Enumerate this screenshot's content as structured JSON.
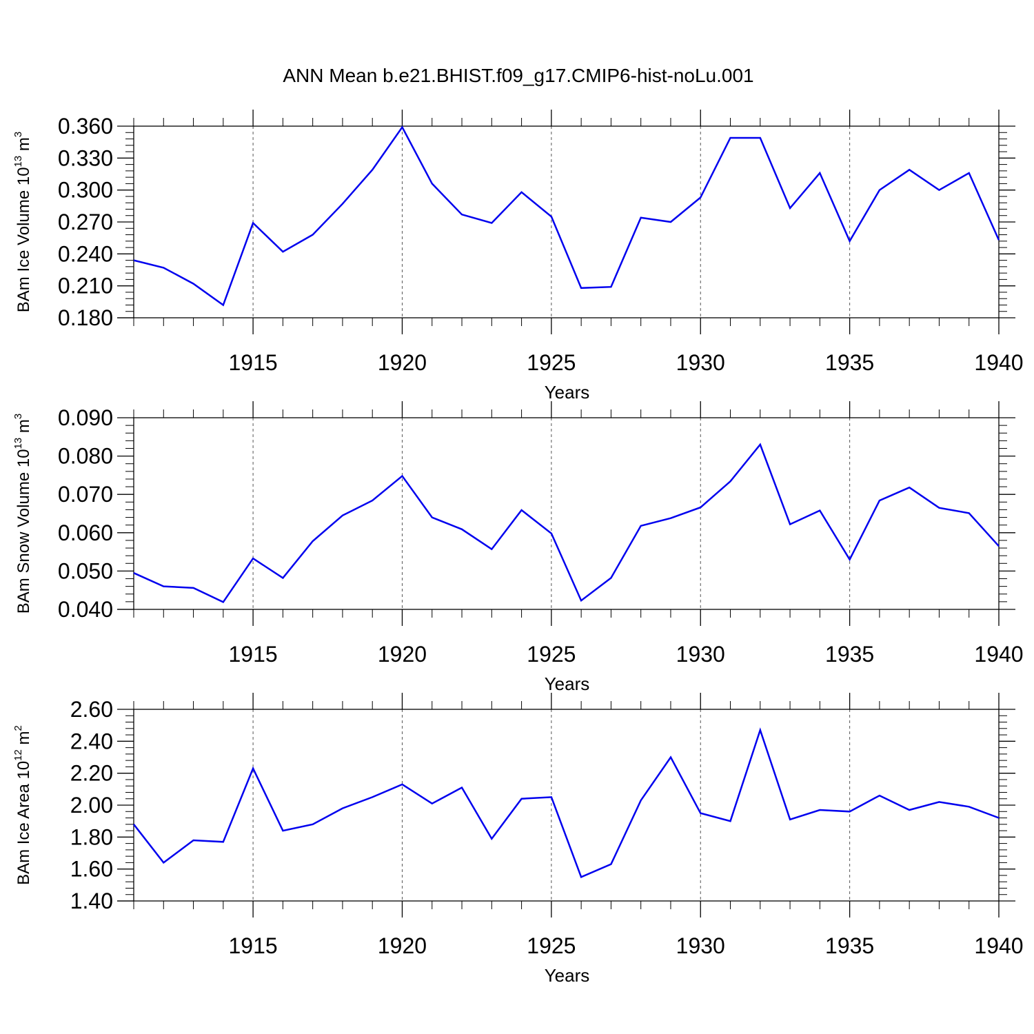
{
  "figure": {
    "title": "ANN Mean b.e21.BHIST.f09_g17.CMIP6-hist-noLu.001"
  },
  "colors": {
    "line": "#0000ee",
    "axis": "#000000",
    "grid": "#555555"
  },
  "chart_data": [
    {
      "type": "line",
      "ylabel": {
        "text": "BAm Ice Volume 10",
        "exp": "13",
        "unit": " m",
        "unit_exp": "3"
      },
      "xlabel": "Years",
      "xlim": [
        1911,
        1940
      ],
      "ylim": [
        0.18,
        0.36
      ],
      "yticks": [
        "0.180",
        "0.210",
        "0.240",
        "0.270",
        "0.300",
        "0.330",
        "0.360"
      ],
      "xticks": [
        "1915",
        "1920",
        "1925",
        "1930",
        "1935",
        "1940"
      ],
      "grid": "vertical dashed at major x ticks",
      "x": [
        1911,
        1912,
        1913,
        1914,
        1915,
        1916,
        1917,
        1918,
        1919,
        1920,
        1921,
        1922,
        1923,
        1924,
        1925,
        1926,
        1927,
        1928,
        1929,
        1930,
        1931,
        1932,
        1933,
        1934,
        1935,
        1936,
        1937,
        1938,
        1939,
        1940
      ],
      "series": [
        {
          "values": [
            0.234,
            0.227,
            0.212,
            0.192,
            0.269,
            0.242,
            0.258,
            0.287,
            0.319,
            0.359,
            0.306,
            0.277,
            0.269,
            0.298,
            0.275,
            0.208,
            0.209,
            0.274,
            0.27,
            0.293,
            0.349,
            0.349,
            0.283,
            0.316,
            0.252,
            0.3,
            0.319,
            0.3,
            0.316,
            0.253
          ]
        }
      ]
    },
    {
      "type": "line",
      "ylabel": {
        "text": "BAm Snow Volume 10",
        "exp": "13",
        "unit": " m",
        "unit_exp": "3"
      },
      "xlabel": "Years",
      "xlim": [
        1911,
        1940
      ],
      "ylim": [
        0.04,
        0.09
      ],
      "yticks": [
        "0.040",
        "0.050",
        "0.060",
        "0.070",
        "0.080",
        "0.090"
      ],
      "xticks": [
        "1915",
        "1920",
        "1925",
        "1930",
        "1935",
        "1940"
      ],
      "grid": "vertical dashed at major x ticks",
      "x": [
        1911,
        1912,
        1913,
        1914,
        1915,
        1916,
        1917,
        1918,
        1919,
        1920,
        1921,
        1922,
        1923,
        1924,
        1925,
        1926,
        1927,
        1928,
        1929,
        1930,
        1931,
        1932,
        1933,
        1934,
        1935,
        1936,
        1937,
        1938,
        1939,
        1940
      ],
      "series": [
        {
          "values": [
            0.0495,
            0.046,
            0.0456,
            0.0419,
            0.0533,
            0.0482,
            0.0578,
            0.0645,
            0.0684,
            0.0748,
            0.064,
            0.0609,
            0.0557,
            0.0659,
            0.0598,
            0.0423,
            0.0482,
            0.0618,
            0.0638,
            0.0666,
            0.0734,
            0.083,
            0.0622,
            0.0658,
            0.053,
            0.0684,
            0.0718,
            0.0665,
            0.0651,
            0.0565
          ]
        }
      ]
    },
    {
      "type": "line",
      "ylabel": {
        "text": "BAm Ice Area 10",
        "exp": "12",
        "unit": " m",
        "unit_exp": "2"
      },
      "xlabel": "Years",
      "xlim": [
        1911,
        1940
      ],
      "ylim": [
        1.4,
        2.6
      ],
      "yticks": [
        "1.40",
        "1.60",
        "1.80",
        "2.00",
        "2.20",
        "2.40",
        "2.60"
      ],
      "xticks": [
        "1915",
        "1920",
        "1925",
        "1930",
        "1935",
        "1940"
      ],
      "grid": "vertical dashed at major x ticks",
      "x": [
        1911,
        1912,
        1913,
        1914,
        1915,
        1916,
        1917,
        1918,
        1919,
        1920,
        1921,
        1922,
        1923,
        1924,
        1925,
        1926,
        1927,
        1928,
        1929,
        1930,
        1931,
        1932,
        1933,
        1934,
        1935,
        1936,
        1937,
        1938,
        1939,
        1940
      ],
      "series": [
        {
          "values": [
            1.88,
            1.64,
            1.78,
            1.77,
            2.23,
            1.84,
            1.88,
            1.98,
            2.05,
            2.13,
            2.01,
            2.11,
            1.79,
            2.04,
            2.05,
            1.55,
            1.63,
            2.03,
            2.3,
            1.95,
            1.9,
            2.47,
            1.91,
            1.97,
            1.96,
            2.06,
            1.97,
            2.02,
            1.99,
            1.92
          ]
        }
      ]
    }
  ]
}
